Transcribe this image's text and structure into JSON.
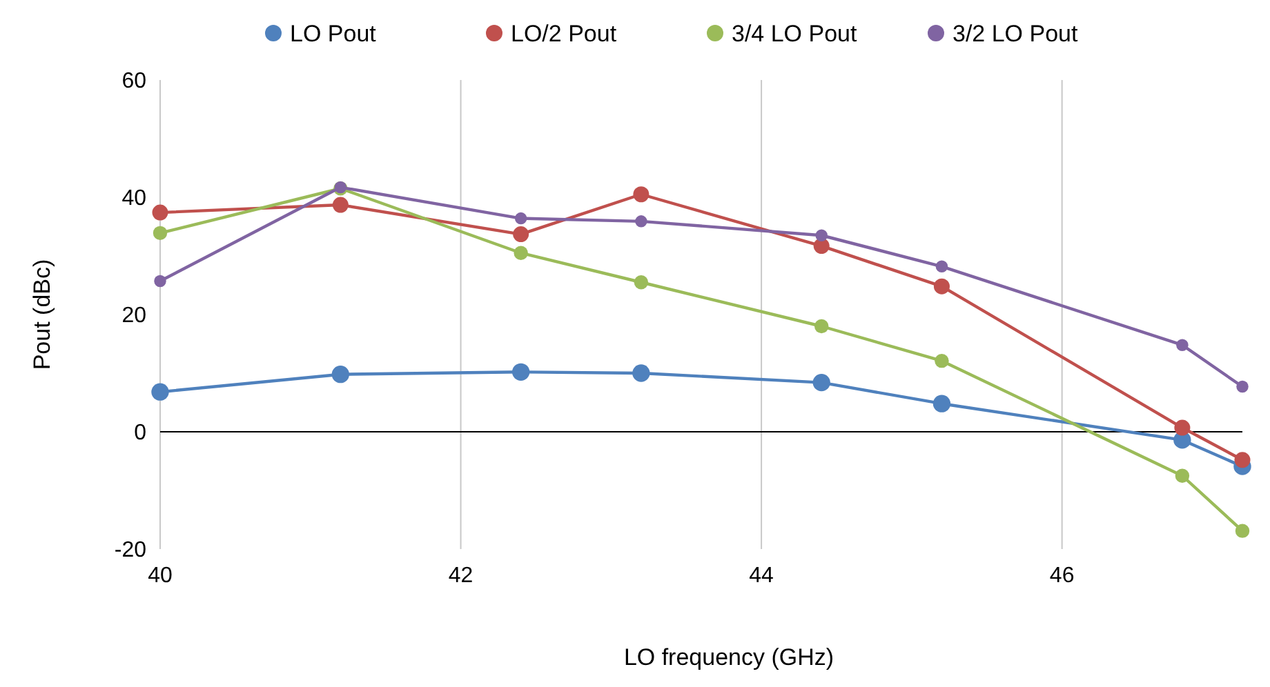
{
  "chart_data": {
    "type": "line",
    "xlabel": "LO frequency (GHz)",
    "ylabel": "Pout (dBc)",
    "x": [
      40,
      41.2,
      42.4,
      43.2,
      44.4,
      45.2,
      46.8,
      47.2
    ],
    "xlim": [
      40,
      47.2
    ],
    "xticks": [
      40,
      42,
      44,
      46
    ],
    "ylim": [
      -20,
      60
    ],
    "yticks": [
      -20,
      0,
      20,
      40,
      60
    ],
    "grid": "x",
    "legend": "top",
    "marker": "circle",
    "line_style": "solid",
    "series": [
      {
        "name": "LO Pout",
        "color": "#4f81bd",
        "values": [
          6.8,
          9.8,
          10.2,
          10,
          8.4,
          4.8,
          -1.4,
          -5.9
        ]
      },
      {
        "name": "LO/2 Pout",
        "color": "#c0504d",
        "values": [
          37.4,
          38.7,
          33.7,
          40.5,
          31.7,
          24.8,
          0.7,
          -4.8
        ]
      },
      {
        "name": "3/4 LO Pout",
        "color": "#9bbb59",
        "values": [
          33.9,
          41.5,
          30.5,
          25.5,
          18,
          12.1,
          -7.5,
          -16.9
        ]
      },
      {
        "name": "3/2 LO Pout",
        "color": "#8064a2",
        "values": [
          25.7,
          41.7,
          36.4,
          35.9,
          33.5,
          28.2,
          14.8,
          7.7
        ]
      }
    ]
  }
}
